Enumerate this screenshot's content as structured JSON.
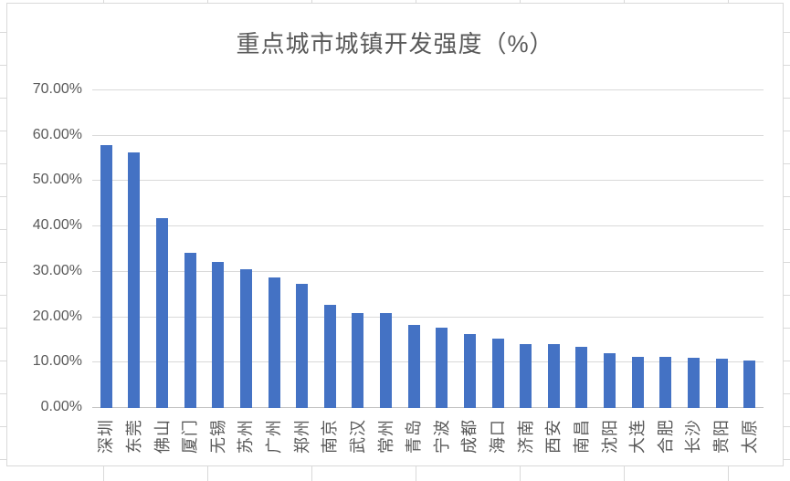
{
  "chart_data": {
    "type": "bar",
    "title": "重点城市城镇开发强度（%）",
    "categories": [
      "深圳",
      "东莞",
      "佛山",
      "厦门",
      "无锡",
      "苏州",
      "广州",
      "郑州",
      "南京",
      "武汉",
      "常州",
      "青岛",
      "宁波",
      "成都",
      "海口",
      "济南",
      "西安",
      "南昌",
      "沈阳",
      "大连",
      "合肥",
      "长沙",
      "贵阳",
      "太原"
    ],
    "values": [
      58.0,
      56.3,
      41.9,
      34.2,
      32.2,
      30.5,
      28.7,
      27.3,
      22.8,
      21.0,
      21.0,
      18.3,
      17.8,
      16.3,
      15.3,
      14.0,
      14.0,
      13.4,
      12.0,
      11.3,
      11.2,
      11.0,
      10.9,
      10.4
    ],
    "xlabel": "",
    "ylabel": "",
    "ylim": [
      0,
      70
    ],
    "ytick_labels": [
      "0.00%",
      "10.00%",
      "20.00%",
      "30.00%",
      "40.00%",
      "50.00%",
      "60.00%",
      "70.00%"
    ],
    "ytick_values": [
      0,
      10,
      20,
      30,
      40,
      50,
      60,
      70
    ],
    "grid": "horizontal",
    "legend": "none",
    "colors": {
      "bar": "#4472C4",
      "gridline": "#D9D9D9",
      "axis_line": "#C3C3C3",
      "label_text": "#595959",
      "title_text": "#595959",
      "chart_border": "#D9D9D9",
      "background": "#FFFFFF"
    }
  }
}
